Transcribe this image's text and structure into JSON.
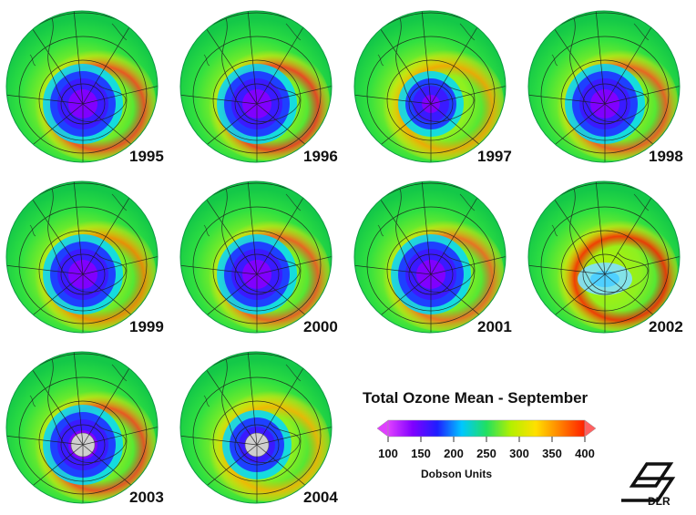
{
  "title": "Total Ozone Mean - September",
  "colorbar": {
    "unit_label": "Dobson Units",
    "ticks": [
      "100",
      "150",
      "200",
      "250",
      "300",
      "350",
      "400"
    ],
    "min": 100,
    "max": 400,
    "colors": [
      "#e040ff",
      "#8000ff",
      "#1e1eff",
      "#00c8ff",
      "#20e060",
      "#b4f000",
      "#ffe000",
      "#ff8000",
      "#ff1e00"
    ]
  },
  "panels": [
    {
      "year": "1995",
      "hole": "large",
      "rim_color": "#ff4020"
    },
    {
      "year": "1996",
      "hole": "large",
      "rim_color": "#ff3020"
    },
    {
      "year": "1997",
      "hole": "small",
      "rim_color": "#ffa000"
    },
    {
      "year": "1998",
      "hole": "large",
      "rim_color": "#ff5020"
    },
    {
      "year": "1999",
      "hole": "large",
      "rim_color": "#ff8000"
    },
    {
      "year": "2000",
      "hole": "large",
      "rim_color": "#ff5020"
    },
    {
      "year": "2001",
      "hole": "large",
      "rim_color": "#ff6020"
    },
    {
      "year": "2002",
      "hole": "split",
      "rim_color": "#ff2000"
    },
    {
      "year": "2003",
      "hole": "large",
      "rim_color": "#ff4020"
    },
    {
      "year": "2004",
      "hole": "medium",
      "rim_color": "#ffb000"
    }
  ],
  "logo": {
    "text": "DLR"
  }
}
